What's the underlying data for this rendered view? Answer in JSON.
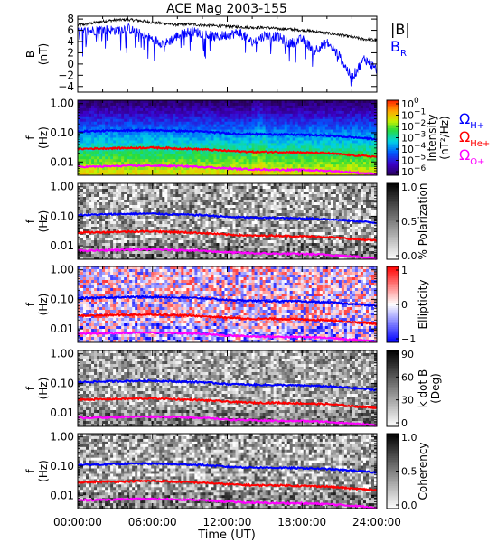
{
  "figure": {
    "title": "ACE Mag 2003-155",
    "xlabel": "Time (UT)",
    "xticks": [
      "00:00:00",
      "06:00:00",
      "12:00:00",
      "18:00:00",
      "24:00:00"
    ]
  },
  "chart_data": [
    {
      "type": "line",
      "ylabel_top": "B",
      "ylabel_unit": "(nT)",
      "ylim": [
        -5,
        8.5
      ],
      "yticks": [
        "8",
        "6",
        "4",
        "2",
        "0",
        "−2",
        "−4"
      ],
      "ytick_values": [
        8,
        6,
        4,
        2,
        0,
        -2,
        -4
      ],
      "x_hours": [
        0,
        1,
        2,
        3,
        4,
        5,
        6,
        7,
        8,
        9,
        10,
        11,
        12,
        13,
        14,
        15,
        16,
        17,
        18,
        19,
        20,
        21,
        22,
        23,
        24
      ],
      "series": [
        {
          "name": "|B|",
          "color": "#000000",
          "values": [
            6.9,
            7.2,
            7.6,
            7.8,
            7.9,
            7.7,
            7.4,
            7.2,
            7.0,
            7.1,
            6.9,
            6.8,
            6.7,
            6.6,
            6.5,
            6.5,
            6.3,
            6.2,
            6.0,
            5.8,
            5.5,
            5.2,
            4.8,
            4.4,
            4.3
          ]
        },
        {
          "name": "B_R",
          "color": "#0000ff",
          "values": [
            5.6,
            5.9,
            6.2,
            6.0,
            6.4,
            5.3,
            4.4,
            3.6,
            5.0,
            5.8,
            5.5,
            4.8,
            5.2,
            5.6,
            3.8,
            5.1,
            4.9,
            3.6,
            4.4,
            2.5,
            3.8,
            1.4,
            -2.5,
            1.0,
            -1.0
          ]
        }
      ],
      "legend_labels": [
        {
          "main": "|B|",
          "color": "#000000"
        },
        {
          "main": "B",
          "sub": "R",
          "color": "#0000ff"
        }
      ]
    },
    {
      "type": "heatmap",
      "ylabel_top": "f",
      "ylabel_unit": "(Hz)",
      "yticks": [
        "1.00",
        "0.10",
        "0.01"
      ],
      "ytick_values": [
        1.0,
        0.1,
        0.01
      ],
      "ylim": [
        0.0035,
        1.3
      ],
      "colormap": "rainbow",
      "colorbar_ticks": [
        {
          "main": "10",
          "sup": "0"
        },
        {
          "main": "10",
          "sup": "−1"
        },
        {
          "main": "10",
          "sup": "−2"
        },
        {
          "main": "10",
          "sup": "−3"
        },
        {
          "main": "10",
          "sup": "−4"
        },
        {
          "main": "10",
          "sup": "−5"
        },
        {
          "main": "10",
          "sup": "−6"
        }
      ],
      "colorbar_label": "Intensity",
      "colorbar_label2": "(nT²/Hz)",
      "gyro_legend": [
        {
          "symbol": "Ω",
          "sub": "H+",
          "color": "#0000ff"
        },
        {
          "symbol": "Ω",
          "sub": "He+",
          "color": "#ff0000"
        },
        {
          "symbol": "Ω",
          "sub": "O+",
          "color": "#ff00ff"
        }
      ]
    },
    {
      "type": "heatmap",
      "ylabel_top": "f",
      "ylabel_unit": "(Hz)",
      "yticks": [
        "1.00",
        "0.10",
        "0.01"
      ],
      "ytick_values": [
        1.0,
        0.1,
        0.01
      ],
      "ylim": [
        0.0035,
        1.3
      ],
      "colormap": "gray",
      "colorbar_ticks": [
        {
          "main": "1.0"
        },
        {
          "main": "0.5"
        },
        {
          "main": "0.0"
        }
      ],
      "colorbar_label": "% Polarization"
    },
    {
      "type": "heatmap",
      "ylabel_top": "f",
      "ylabel_unit": "(Hz)",
      "yticks": [
        "1.00",
        "0.10",
        "0.01"
      ],
      "ytick_values": [
        1.0,
        0.1,
        0.01
      ],
      "ylim": [
        0.0035,
        1.3
      ],
      "colormap": "bluewhitered",
      "colorbar_ticks": [
        {
          "main": "1"
        },
        {
          "main": "0"
        },
        {
          "main": "−1"
        }
      ],
      "colorbar_label": "Ellipticity"
    },
    {
      "type": "heatmap",
      "ylabel_top": "f",
      "ylabel_unit": "(Hz)",
      "yticks": [
        "1.00",
        "0.10",
        "0.01"
      ],
      "ytick_values": [
        1.0,
        0.1,
        0.01
      ],
      "ylim": [
        0.0035,
        1.3
      ],
      "colormap": "gray",
      "colorbar_ticks": [
        {
          "main": "90"
        },
        {
          "main": "60"
        },
        {
          "main": "30"
        },
        {
          "main": "0"
        }
      ],
      "colorbar_label": "k dot B",
      "colorbar_label2": "(Deg)"
    },
    {
      "type": "heatmap",
      "ylabel_top": "f",
      "ylabel_unit": "(Hz)",
      "yticks": [
        "1.00",
        "0.10",
        "0.01"
      ],
      "ytick_values": [
        1.0,
        0.1,
        0.01
      ],
      "ylim": [
        0.0035,
        1.3
      ],
      "colormap": "gray",
      "colorbar_ticks": [
        {
          "main": "1.0"
        },
        {
          "main": "0.5"
        },
        {
          "main": "0.0"
        }
      ],
      "colorbar_label": "Coherency"
    }
  ],
  "gyrofrequency_lines": {
    "x_hours": [
      0,
      2,
      4,
      6,
      8,
      10,
      12,
      14,
      16,
      18,
      20,
      22,
      24
    ],
    "series": [
      {
        "name": "H+",
        "color": "#0000ff",
        "values": [
          0.11,
          0.115,
          0.12,
          0.122,
          0.115,
          0.11,
          0.095,
          0.09,
          0.088,
          0.085,
          0.08,
          0.07,
          0.06
        ]
      },
      {
        "name": "He+",
        "color": "#ff0000",
        "values": [
          0.028,
          0.029,
          0.03,
          0.031,
          0.029,
          0.027,
          0.024,
          0.022,
          0.022,
          0.021,
          0.02,
          0.017,
          0.015
        ]
      },
      {
        "name": "O+",
        "color": "#ff00ff",
        "values": [
          0.0068,
          0.007,
          0.0074,
          0.0075,
          0.0072,
          0.0068,
          0.006,
          0.0056,
          0.0054,
          0.0053,
          0.005,
          0.0044,
          0.0038
        ]
      }
    ]
  }
}
